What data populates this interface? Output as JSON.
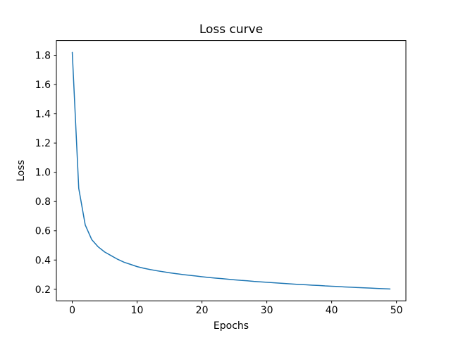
{
  "chart_data": {
    "type": "line",
    "title": "Loss curve",
    "xlabel": "Epochs",
    "ylabel": "Loss",
    "x": [
      0,
      1,
      2,
      3,
      4,
      5,
      6,
      7,
      8,
      9,
      10,
      11,
      12,
      13,
      14,
      15,
      16,
      17,
      18,
      19,
      20,
      21,
      22,
      23,
      24,
      25,
      26,
      27,
      28,
      29,
      30,
      31,
      32,
      33,
      34,
      35,
      36,
      37,
      38,
      39,
      40,
      41,
      42,
      43,
      44,
      45,
      46,
      47,
      48,
      49
    ],
    "series": [
      {
        "name": "loss",
        "color": "#1f77b4",
        "line_width": 1.5,
        "values": [
          1.82,
          0.89,
          0.64,
          0.54,
          0.49,
          0.455,
          0.43,
          0.405,
          0.385,
          0.37,
          0.355,
          0.344,
          0.335,
          0.327,
          0.32,
          0.313,
          0.307,
          0.301,
          0.296,
          0.291,
          0.286,
          0.281,
          0.277,
          0.273,
          0.269,
          0.265,
          0.261,
          0.258,
          0.254,
          0.251,
          0.248,
          0.245,
          0.242,
          0.239,
          0.236,
          0.233,
          0.231,
          0.228,
          0.226,
          0.223,
          0.221,
          0.219,
          0.216,
          0.214,
          0.212,
          0.21,
          0.208,
          0.206,
          0.204,
          0.202
        ]
      }
    ],
    "xlim": [
      -2.45,
      51.45
    ],
    "ylim": [
      0.1211,
      1.9009
    ],
    "xticks": [
      0,
      10,
      20,
      30,
      40,
      50
    ],
    "yticks": [
      0.2,
      0.4,
      0.6,
      0.8,
      1.0,
      1.2,
      1.4,
      1.6,
      1.8
    ],
    "ytick_decimals": 1,
    "grid": false,
    "legend_position": "none",
    "spine_color": "#000000",
    "background_color": "#ffffff"
  }
}
